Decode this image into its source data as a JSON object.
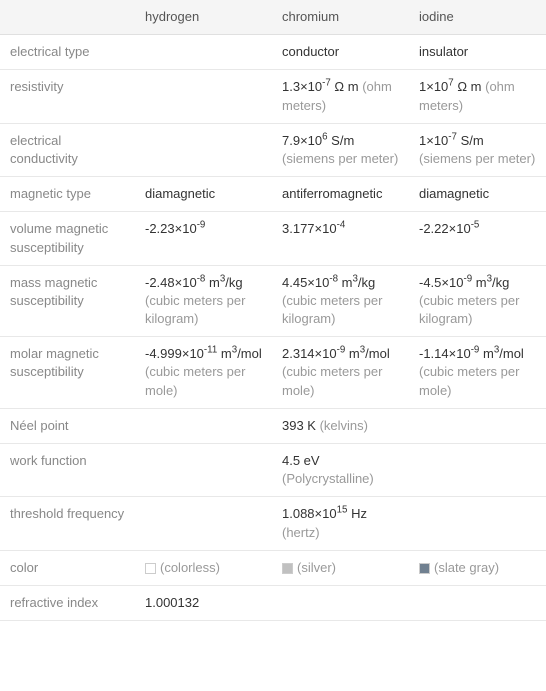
{
  "table": {
    "columns": [
      "",
      "hydrogen",
      "chromium",
      "iodine"
    ],
    "rows": [
      {
        "label": "electrical type",
        "hydrogen": "",
        "chromium": "conductor",
        "iodine": "insulator"
      },
      {
        "label": "resistivity",
        "hydrogen": "",
        "chromium_html": "1.3×10<sup>-7</sup> Ω m <span class='unit'>(ohm meters)</span>",
        "iodine_html": "1×10<sup>7</sup> Ω m <span class='unit'>(ohm meters)</span>"
      },
      {
        "label": "electrical conductivity",
        "hydrogen": "",
        "chromium_html": "7.9×10<sup>6</sup> S/m <span class='unit'>(siemens per meter)</span>",
        "iodine_html": "1×10<sup>-7</sup> S/m <span class='unit'>(siemens per meter)</span>"
      },
      {
        "label": "magnetic type",
        "hydrogen": "diamagnetic",
        "chromium": "antiferromagnetic",
        "iodine": "diamagnetic"
      },
      {
        "label": "volume magnetic susceptibility",
        "hydrogen_html": "-2.23×10<sup>-9</sup>",
        "chromium_html": "3.177×10<sup>-4</sup>",
        "iodine_html": "-2.22×10<sup>-5</sup>"
      },
      {
        "label": "mass magnetic susceptibility",
        "hydrogen_html": "-2.48×10<sup>-8</sup> m<sup>3</sup>/kg <span class='unit'>(cubic meters per kilogram)</span>",
        "chromium_html": "4.45×10<sup>-8</sup> m<sup>3</sup>/kg <span class='unit'>(cubic meters per kilogram)</span>",
        "iodine_html": "-4.5×10<sup>-9</sup> m<sup>3</sup>/kg <span class='unit'>(cubic meters per kilogram)</span>"
      },
      {
        "label": "molar magnetic susceptibility",
        "hydrogen_html": "-4.999×10<sup>-11</sup> m<sup>3</sup>/mol <span class='unit'>(cubic meters per mole)</span>",
        "chromium_html": "2.314×10<sup>-9</sup> m<sup>3</sup>/mol <span class='unit'>(cubic meters per mole)</span>",
        "iodine_html": "-1.14×10<sup>-9</sup> m<sup>3</sup>/mol <span class='unit'>(cubic meters per mole)</span>"
      },
      {
        "label": "Néel point",
        "hydrogen": "",
        "chromium_html": "393 K <span class='unit'>(kelvins)</span>",
        "iodine": ""
      },
      {
        "label": "work function",
        "hydrogen": "",
        "chromium_html": "4.5 eV <span class='unit'>(Polycrystalline)</span>",
        "iodine": ""
      },
      {
        "label": "threshold frequency",
        "hydrogen": "",
        "chromium_html": "1.088×10<sup>15</sup> Hz <span class='unit'>(hertz)</span>",
        "iodine": ""
      },
      {
        "label": "color",
        "type": "color",
        "hydrogen_color": "#ffffff",
        "hydrogen_label": "(colorless)",
        "chromium_color": "#c0c0c0",
        "chromium_label": "(silver)",
        "iodine_color": "#708090",
        "iodine_label": "(slate gray)"
      },
      {
        "label": "refractive index",
        "hydrogen": "1.000132",
        "chromium": "",
        "iodine": ""
      }
    ],
    "style": {
      "header_bg": "#f5f5f5",
      "border_color": "#e8e8e8",
      "label_color": "#888888",
      "value_color": "#333333",
      "unit_color": "#999999",
      "font_size": 13
    }
  }
}
